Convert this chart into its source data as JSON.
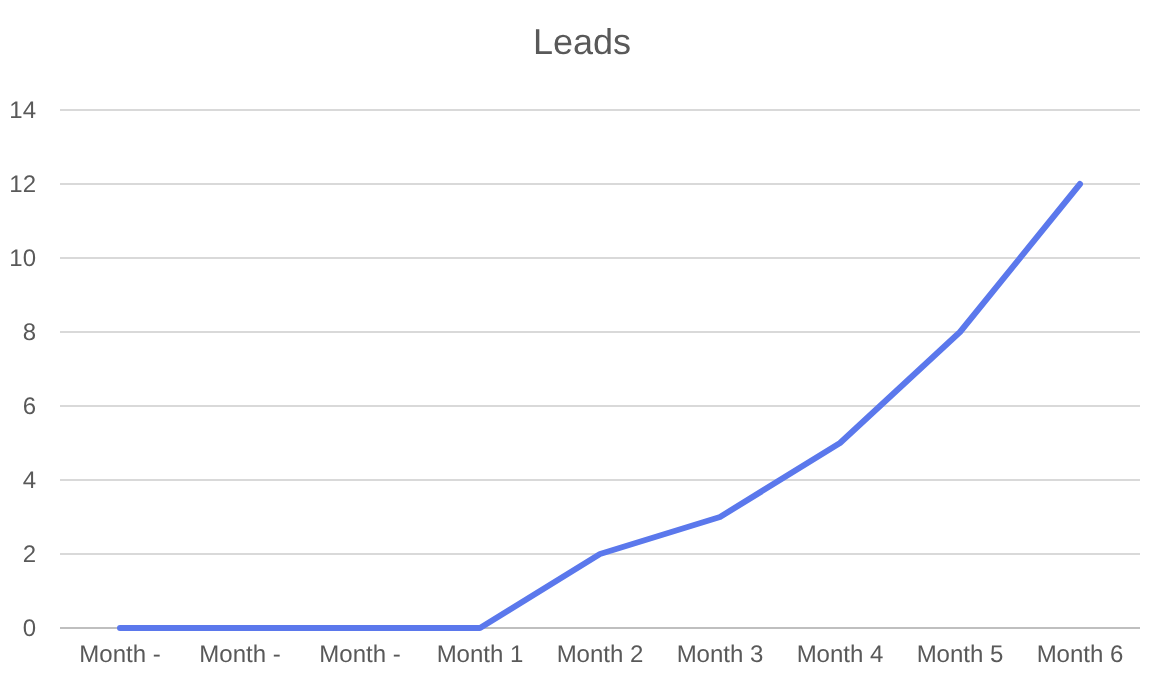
{
  "chart_data": {
    "type": "line",
    "title": "Leads",
    "categories": [
      "Month -",
      "Month -",
      "Month -",
      "Month 1",
      "Month 2",
      "Month 3",
      "Month 4",
      "Month 5",
      "Month 6"
    ],
    "series": [
      {
        "color": "#5b78ec",
        "values": [
          0,
          0,
          0,
          0,
          2,
          3,
          5,
          8,
          12
        ]
      }
    ],
    "ylim": [
      0,
      14
    ],
    "yticks": [
      0,
      2,
      4,
      6,
      8,
      10,
      12,
      14
    ],
    "grid": "y",
    "marker": "none",
    "line_style": "solid"
  }
}
